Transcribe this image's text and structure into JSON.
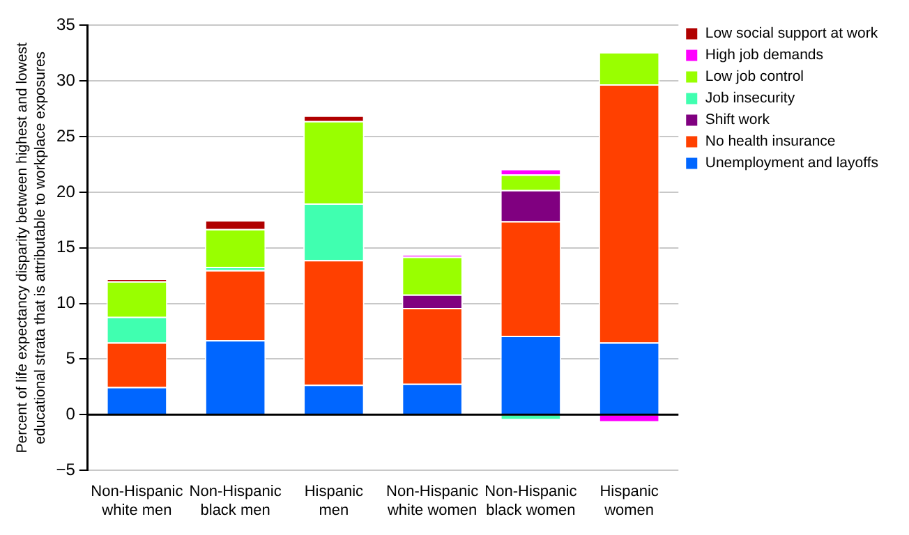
{
  "chart_data": {
    "type": "bar",
    "stacked": true,
    "ylabel": "Percent of life expectancy disparity between highest and lowest educational strata that is attributable to workplace exposures",
    "categories": [
      "Non-Hispanic white men",
      "Non-Hispanic black men",
      "Hispanic men",
      "Non-Hispanic white women",
      "Non-Hispanic black women",
      "Hispanic women"
    ],
    "series": [
      {
        "name": "Unemployment and layoffs",
        "color": "#0066ff",
        "values": [
          2.5,
          6.7,
          2.7,
          2.8,
          7.1,
          6.5
        ]
      },
      {
        "name": "No health insurance",
        "color": "#ff4000",
        "values": [
          4.0,
          6.3,
          11.2,
          6.8,
          10.3,
          23.2
        ]
      },
      {
        "name": "Shift work",
        "color": "#800080",
        "values": [
          null,
          null,
          null,
          1.2,
          2.8,
          null
        ]
      },
      {
        "name": "Job insecurity",
        "color": "#40ffb0",
        "values": [
          2.3,
          0.3,
          5.1,
          null,
          -0.5,
          null
        ]
      },
      {
        "name": "Low job control",
        "color": "#99ff00",
        "values": [
          3.2,
          3.4,
          7.4,
          3.4,
          1.4,
          2.9
        ]
      },
      {
        "name": "High job demands",
        "color": "#ff00ff",
        "values": [
          null,
          null,
          null,
          0.2,
          0.5,
          -0.7
        ]
      },
      {
        "name": "Low social support at work",
        "color": "#b00000",
        "values": [
          0.2,
          0.8,
          0.5,
          null,
          null,
          null
        ]
      }
    ],
    "ylim": [
      -5,
      35
    ],
    "yticks": [
      -5,
      0,
      5,
      10,
      15,
      20,
      25,
      30,
      35
    ],
    "grid": "y",
    "legend": "top right"
  }
}
